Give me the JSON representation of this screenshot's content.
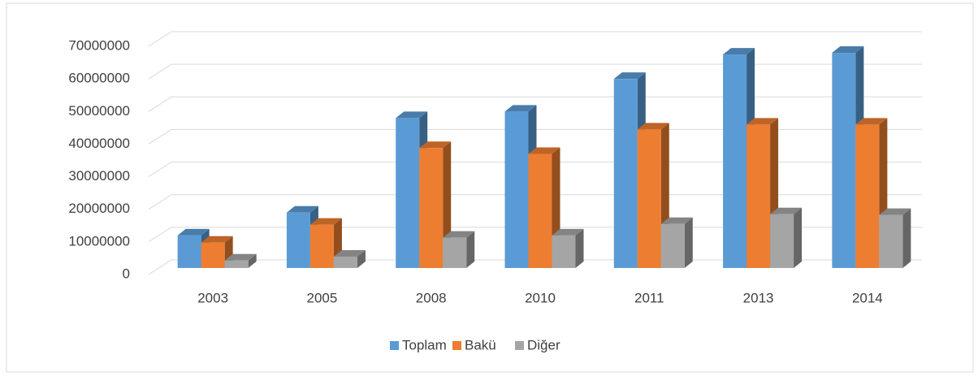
{
  "chart_data": {
    "type": "bar3d",
    "categories": [
      "2003",
      "2005",
      "2008",
      "2010",
      "2011",
      "2013",
      "2014"
    ],
    "series": [
      {
        "name": "Toplam",
        "color": "#5b9bd5",
        "values": [
          10000000,
          17000000,
          46000000,
          48000000,
          58000000,
          65500000,
          66000000
        ]
      },
      {
        "name": "Bakü",
        "color": "#ed7d31",
        "values": [
          7800000,
          13300000,
          36800000,
          35000000,
          42500000,
          44000000,
          44000000
        ]
      },
      {
        "name": "Diğer",
        "color": "#a5a5a5",
        "values": [
          2300000,
          3500000,
          9300000,
          10000000,
          13500000,
          16500000,
          16300000
        ]
      }
    ],
    "ylim": [
      0,
      70000000
    ],
    "yticks": [
      0,
      10000000,
      20000000,
      30000000,
      40000000,
      50000000,
      60000000,
      70000000
    ],
    "grid": true,
    "legend": "bottom"
  }
}
